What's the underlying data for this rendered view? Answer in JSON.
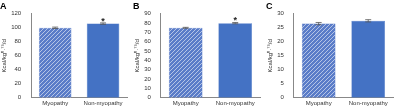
{
  "chart_data": [
    {
      "type": "bar",
      "title": "A",
      "y_label": "Kcal/kg⁰·⁷⁵/d",
      "categories": [
        "Myopathy",
        "Non-myopathy"
      ],
      "values": [
        100,
        106
      ],
      "errors": [
        1,
        1
      ],
      "colors": [
        "#5a7cc8",
        "#4472c4"
      ],
      "ylim": [
        0,
        120
      ],
      "yticks": [
        0,
        20,
        40,
        60,
        80,
        100,
        120
      ],
      "grid": false,
      "annotations": [
        {
          "category": "Non-myopathy",
          "text": "*"
        }
      ]
    },
    {
      "type": "bar",
      "title": "B",
      "y_label": "Kcal/kg⁰·⁷⁵/d",
      "categories": [
        "Myopathy",
        "Non-myopathy"
      ],
      "values": [
        75,
        80
      ],
      "errors": [
        0.5,
        0.7
      ],
      "colors": [
        "#5a7cc8",
        "#4472c4"
      ],
      "ylim": [
        0,
        90
      ],
      "yticks": [
        0,
        10,
        20,
        30,
        40,
        50,
        60,
        70,
        80,
        90
      ],
      "grid": false,
      "annotations": [
        {
          "category": "Non-myopathy",
          "text": "*"
        }
      ]
    },
    {
      "type": "bar",
      "title": "C",
      "y_label": "Kcal/kg⁰·⁷⁵/d",
      "categories": [
        "Myopathy",
        "Non-myopathy"
      ],
      "values": [
        26.5,
        27.5
      ],
      "errors": [
        0.4,
        0.4
      ],
      "colors": [
        "#5a7cc8",
        "#4472c4"
      ],
      "ylim": [
        0,
        30
      ],
      "yticks": [
        0,
        5,
        10,
        15,
        20,
        25,
        30
      ],
      "grid": false,
      "annotations": []
    }
  ]
}
